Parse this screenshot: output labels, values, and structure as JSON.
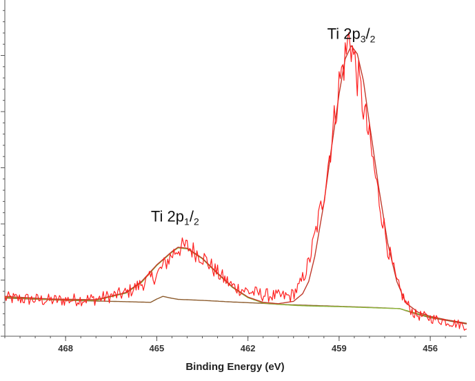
{
  "chart_data": {
    "type": "line",
    "title": "",
    "xlabel": "Binding Energy (eV)",
    "ylabel": "",
    "x_reversed": true,
    "xlim": [
      470.0,
      454.8
    ],
    "ylim": [
      0,
      100
    ],
    "x_ticks": [
      468,
      465,
      462,
      459,
      456
    ],
    "x_tick_labels": [
      "468",
      "465",
      "462",
      "459",
      "456"
    ],
    "legend": "none",
    "grid": false,
    "annotations": [
      {
        "name": "ti-2p12-label",
        "main": "Ti 2p",
        "sub1": "1",
        "slash": "/",
        "sub2": "2",
        "x": 464.4,
        "y": 34.5
      },
      {
        "name": "ti-2p32-label",
        "main": "Ti 2p",
        "sub1": "3",
        "slash": "/",
        "sub2": "2",
        "x": 458.6,
        "y": 89.5
      }
    ],
    "series": [
      {
        "name": "raw-data",
        "color": "#ff1f1f",
        "noisy": true,
        "points": [
          [
            470.0,
            11.5
          ],
          [
            468.5,
            10.8
          ],
          [
            467.0,
            11.2
          ],
          [
            466.0,
            13.0
          ],
          [
            465.0,
            18.5
          ],
          [
            464.5,
            24.5
          ],
          [
            464.3,
            26.5
          ],
          [
            464.0,
            27.0
          ],
          [
            463.5,
            24.0
          ],
          [
            463.0,
            19.0
          ],
          [
            462.5,
            15.0
          ],
          [
            462.0,
            13.5
          ],
          [
            461.5,
            12.5
          ],
          [
            461.0,
            12.0
          ],
          [
            460.6,
            12.0
          ],
          [
            460.3,
            15.0
          ],
          [
            460.0,
            22.0
          ],
          [
            459.8,
            30.0
          ],
          [
            459.5,
            43.0
          ],
          [
            459.2,
            62.0
          ],
          [
            459.0,
            76.0
          ],
          [
            458.8,
            84.0
          ],
          [
            458.65,
            91.0
          ],
          [
            458.5,
            83.0
          ],
          [
            458.3,
            74.0
          ],
          [
            458.0,
            59.0
          ],
          [
            457.7,
            42.0
          ],
          [
            457.4,
            27.0
          ],
          [
            457.1,
            16.0
          ],
          [
            456.8,
            10.0
          ],
          [
            456.5,
            6.5
          ],
          [
            456.0,
            5.5
          ],
          [
            455.5,
            4.5
          ],
          [
            455.0,
            3.5
          ],
          [
            454.8,
            3.0
          ]
        ]
      },
      {
        "name": "envelope-fit",
        "color": "#c0392b",
        "noisy": false,
        "points": [
          [
            470.0,
            12.0
          ],
          [
            468.5,
            11.2
          ],
          [
            467.0,
            11.0
          ],
          [
            466.0,
            13.2
          ],
          [
            465.5,
            16.5
          ],
          [
            465.0,
            21.5
          ],
          [
            464.5,
            25.5
          ],
          [
            464.3,
            26.8
          ],
          [
            464.0,
            26.5
          ],
          [
            463.5,
            23.5
          ],
          [
            463.0,
            19.0
          ],
          [
            462.5,
            14.8
          ],
          [
            462.0,
            11.8
          ],
          [
            461.5,
            10.2
          ],
          [
            461.0,
            9.8
          ],
          [
            460.5,
            10.5
          ],
          [
            460.2,
            12.8
          ],
          [
            460.0,
            16.5
          ],
          [
            459.8,
            24.0
          ],
          [
            459.5,
            40.0
          ],
          [
            459.2,
            60.0
          ],
          [
            459.0,
            73.0
          ],
          [
            458.8,
            83.5
          ],
          [
            458.6,
            87.5
          ],
          [
            458.4,
            85.0
          ],
          [
            458.2,
            77.0
          ],
          [
            458.0,
            64.0
          ],
          [
            457.7,
            45.0
          ],
          [
            457.4,
            28.0
          ],
          [
            457.1,
            16.5
          ],
          [
            456.8,
            10.0
          ],
          [
            456.4,
            7.2
          ],
          [
            456.0,
            6.0
          ],
          [
            455.5,
            5.0
          ],
          [
            455.0,
            4.2
          ],
          [
            454.8,
            3.8
          ]
        ]
      },
      {
        "name": "ti-2p12-component",
        "color": "#8cb83c",
        "noisy": false,
        "points": [
          [
            470.0,
            11.8
          ],
          [
            468.5,
            11.0
          ],
          [
            467.0,
            10.8
          ],
          [
            466.0,
            13.0
          ],
          [
            465.5,
            16.2
          ],
          [
            465.0,
            21.3
          ],
          [
            464.5,
            25.3
          ],
          [
            464.3,
            26.6
          ],
          [
            464.0,
            26.3
          ],
          [
            463.5,
            23.3
          ],
          [
            463.0,
            18.8
          ],
          [
            462.5,
            14.6
          ],
          [
            462.0,
            11.6
          ],
          [
            461.5,
            10.0
          ],
          [
            461.0,
            9.6
          ],
          [
            460.5,
            9.3
          ],
          [
            460.0,
            9.1
          ],
          [
            459.0,
            8.9
          ],
          [
            458.0,
            8.6
          ],
          [
            457.0,
            8.3
          ],
          [
            456.5,
            7.0
          ],
          [
            456.0,
            5.8
          ],
          [
            455.0,
            4.2
          ],
          [
            454.8,
            3.9
          ]
        ]
      },
      {
        "name": "shirley-background",
        "color": "#8b5a2b",
        "noisy": false,
        "points": [
          [
            470.0,
            11.5
          ],
          [
            468.0,
            10.8
          ],
          [
            466.0,
            10.4
          ],
          [
            465.2,
            10.2
          ],
          [
            465.0,
            11.2
          ],
          [
            464.8,
            12.0
          ],
          [
            464.6,
            11.6
          ],
          [
            464.3,
            11.1
          ],
          [
            463.5,
            10.8
          ],
          [
            462.5,
            10.3
          ],
          [
            461.5,
            9.9
          ],
          [
            461.0,
            9.6
          ],
          [
            460.0,
            9.3
          ],
          [
            459.0,
            9.0
          ],
          [
            458.0,
            8.7
          ],
          [
            457.0,
            8.3
          ],
          [
            456.5,
            6.8
          ],
          [
            456.0,
            5.6
          ],
          [
            455.0,
            4.0
          ],
          [
            454.8,
            3.7
          ]
        ]
      }
    ]
  }
}
